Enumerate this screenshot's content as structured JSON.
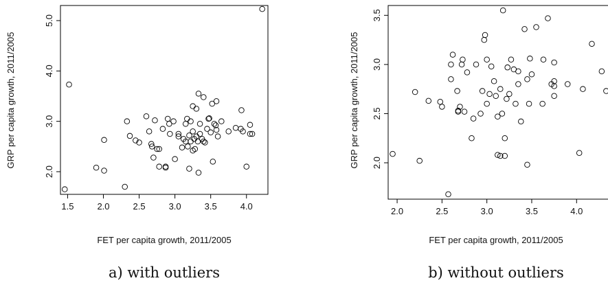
{
  "chart_data": [
    {
      "type": "scatter",
      "caption": "a) with outliers",
      "xlabel": "FET per capita growth, 2011/2005",
      "ylabel": "GRP per capita growth, 2011/2005",
      "xlim": [
        1.4,
        4.3
      ],
      "ylim": [
        1.55,
        5.3
      ],
      "xticks": [
        "1.5",
        "2.0",
        "2.5",
        "3.0",
        "3.5",
        "4.0"
      ],
      "yticks": [
        "2.0",
        "3.0",
        "4.0",
        "5.0"
      ],
      "grid": false,
      "marker": "open-circle",
      "points": [
        [
          1.46,
          1.65
        ],
        [
          1.52,
          3.73
        ],
        [
          1.9,
          2.08
        ],
        [
          2.01,
          2.63
        ],
        [
          2.01,
          2.02
        ],
        [
          2.3,
          1.7
        ],
        [
          2.33,
          3.0
        ],
        [
          2.37,
          2.71
        ],
        [
          2.45,
          2.62
        ],
        [
          2.5,
          2.58
        ],
        [
          2.6,
          3.1
        ],
        [
          2.64,
          2.8
        ],
        [
          2.67,
          2.55
        ],
        [
          2.68,
          2.5
        ],
        [
          2.7,
          2.28
        ],
        [
          2.72,
          3.02
        ],
        [
          2.75,
          2.45
        ],
        [
          2.78,
          2.45
        ],
        [
          2.78,
          2.1
        ],
        [
          2.83,
          2.85
        ],
        [
          2.87,
          2.1
        ],
        [
          2.87,
          2.08
        ],
        [
          2.9,
          3.05
        ],
        [
          2.92,
          2.95
        ],
        [
          2.93,
          2.75
        ],
        [
          2.98,
          3.0
        ],
        [
          3.0,
          2.25
        ],
        [
          3.05,
          2.75
        ],
        [
          3.05,
          2.7
        ],
        [
          3.1,
          2.48
        ],
        [
          3.12,
          2.65
        ],
        [
          3.15,
          2.6
        ],
        [
          3.15,
          2.95
        ],
        [
          3.17,
          3.05
        ],
        [
          3.18,
          2.5
        ],
        [
          3.2,
          2.72
        ],
        [
          3.2,
          2.06
        ],
        [
          3.22,
          3.0
        ],
        [
          3.22,
          2.6
        ],
        [
          3.25,
          2.8
        ],
        [
          3.25,
          2.42
        ],
        [
          3.25,
          3.3
        ],
        [
          3.27,
          2.65
        ],
        [
          3.28,
          2.45
        ],
        [
          3.3,
          2.7
        ],
        [
          3.3,
          3.25
        ],
        [
          3.32,
          2.6
        ],
        [
          3.33,
          1.98
        ],
        [
          3.33,
          3.55
        ],
        [
          3.35,
          2.75
        ],
        [
          3.35,
          2.95
        ],
        [
          3.38,
          2.65
        ],
        [
          3.4,
          3.48
        ],
        [
          3.4,
          2.6
        ],
        [
          3.42,
          2.58
        ],
        [
          3.45,
          2.85
        ],
        [
          3.47,
          3.05
        ],
        [
          3.48,
          3.06
        ],
        [
          3.5,
          2.78
        ],
        [
          3.52,
          3.35
        ],
        [
          3.53,
          2.2
        ],
        [
          3.55,
          2.95
        ],
        [
          3.57,
          2.92
        ],
        [
          3.58,
          2.83
        ],
        [
          3.58,
          3.4
        ],
        [
          3.6,
          2.7
        ],
        [
          3.65,
          3.0
        ],
        [
          3.75,
          2.8
        ],
        [
          3.85,
          2.87
        ],
        [
          3.92,
          2.85
        ],
        [
          3.93,
          3.22
        ],
        [
          3.95,
          2.8
        ],
        [
          4.0,
          2.1
        ],
        [
          4.05,
          2.93
        ],
        [
          4.05,
          2.75
        ],
        [
          4.08,
          2.75
        ],
        [
          4.22,
          5.23
        ]
      ]
    },
    {
      "type": "scatter",
      "caption": "b) without outliers",
      "xlabel": "FET per capita growth, 2011/2005",
      "ylabel": "GRP per capita growth, 2011/2005",
      "xlim": [
        1.9,
        4.35
      ],
      "ylim": [
        1.63,
        3.6
      ],
      "xticks": [
        "2.0",
        "2.5",
        "3.0",
        "3.5",
        "4.0"
      ],
      "yticks": [
        "2.0",
        "2.5",
        "3.0",
        "3.5"
      ],
      "grid": false,
      "marker": "open-circle",
      "points": [
        [
          1.95,
          2.09
        ],
        [
          2.2,
          2.72
        ],
        [
          2.25,
          2.02
        ],
        [
          2.35,
          2.63
        ],
        [
          2.48,
          2.62
        ],
        [
          2.5,
          2.57
        ],
        [
          2.57,
          1.68
        ],
        [
          2.6,
          2.85
        ],
        [
          2.6,
          3.0
        ],
        [
          2.62,
          3.1
        ],
        [
          2.67,
          2.73
        ],
        [
          2.68,
          2.53
        ],
        [
          2.68,
          2.52
        ],
        [
          2.7,
          2.57
        ],
        [
          2.72,
          3.0
        ],
        [
          2.73,
          3.05
        ],
        [
          2.75,
          2.52
        ],
        [
          2.78,
          2.92
        ],
        [
          2.83,
          2.25
        ],
        [
          2.85,
          2.45
        ],
        [
          2.88,
          3.0
        ],
        [
          2.93,
          2.5
        ],
        [
          2.95,
          2.73
        ],
        [
          2.97,
          3.25
        ],
        [
          2.98,
          3.3
        ],
        [
          3.0,
          2.6
        ],
        [
          3.0,
          3.05
        ],
        [
          3.03,
          2.7
        ],
        [
          3.05,
          2.98
        ],
        [
          3.08,
          2.83
        ],
        [
          3.1,
          2.68
        ],
        [
          3.12,
          2.08
        ],
        [
          3.12,
          2.47
        ],
        [
          3.15,
          2.07
        ],
        [
          3.15,
          2.75
        ],
        [
          3.17,
          2.5
        ],
        [
          3.18,
          3.55
        ],
        [
          3.2,
          2.25
        ],
        [
          3.2,
          2.07
        ],
        [
          3.22,
          2.65
        ],
        [
          3.23,
          2.97
        ],
        [
          3.25,
          2.7
        ],
        [
          3.27,
          3.05
        ],
        [
          3.3,
          2.95
        ],
        [
          3.32,
          2.6
        ],
        [
          3.35,
          2.8
        ],
        [
          3.35,
          2.93
        ],
        [
          3.38,
          2.42
        ],
        [
          3.42,
          3.36
        ],
        [
          3.45,
          2.85
        ],
        [
          3.45,
          1.98
        ],
        [
          3.47,
          2.6
        ],
        [
          3.48,
          3.06
        ],
        [
          3.5,
          2.9
        ],
        [
          3.55,
          3.38
        ],
        [
          3.62,
          2.6
        ],
        [
          3.63,
          3.05
        ],
        [
          3.68,
          3.47
        ],
        [
          3.72,
          2.8
        ],
        [
          3.75,
          2.78
        ],
        [
          3.75,
          2.68
        ],
        [
          3.75,
          3.02
        ],
        [
          3.75,
          2.83
        ],
        [
          3.9,
          2.8
        ],
        [
          4.03,
          2.1
        ],
        [
          4.07,
          2.75
        ],
        [
          4.17,
          3.21
        ],
        [
          4.28,
          2.93
        ],
        [
          4.33,
          2.73
        ]
      ]
    }
  ]
}
